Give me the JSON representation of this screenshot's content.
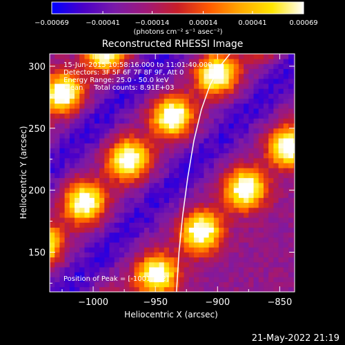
{
  "chart_data": {
    "type": "heatmap",
    "title": "Reconstructed RHESSI Image",
    "xlabel": "Heliocentric X (arcsec)",
    "ylabel": "Heliocentric Y (arcsec)",
    "xlim": [
      -1035,
      -838
    ],
    "ylim": [
      118,
      310
    ],
    "x_ticks": [
      -1000,
      -950,
      -900,
      -850
    ],
    "y_ticks": [
      150,
      200,
      250,
      300
    ],
    "x_tick_labels": [
      "−1000",
      "−950",
      "−900",
      "−850"
    ],
    "y_tick_labels": [
      "150",
      "200",
      "250",
      "300"
    ],
    "colorbar": {
      "range": [
        -0.00069,
        0.00069
      ],
      "ticks": [
        -0.00069,
        -0.00041,
        -0.00014,
        0.00014,
        0.00041,
        0.00069
      ],
      "tick_labels": [
        "−0.00069",
        "−0.00041",
        "−0.00014",
        "0.00014",
        "0.00041",
        "0.00069"
      ],
      "unit_label": "(photons cm⁻² s⁻¹ asec⁻²)",
      "colormap": [
        "#0000ff",
        "#4a00c8",
        "#7a1aa8",
        "#a01878",
        "#c81e28",
        "#ff5a00",
        "#ffaa00",
        "#ffe600",
        "#ffffff"
      ]
    },
    "annotations": [
      "15-Jun-2015 10:58:16.000 to 11:01:40.000",
      "Detectors: 3F 5F 6F 7F 8F 9F, Att 0",
      "Energy Range: 25.0 - 50.0 keV",
      "Clean     Total counts: 8.91E+03"
    ],
    "peak_label": "Position of Peak = [-1001,182]",
    "limb_curve": {
      "x": [
        -933,
        -931,
        -928,
        -924,
        -919,
        -913,
        -906,
        -898,
        -890
      ],
      "y": [
        118,
        150,
        180,
        210,
        240,
        265,
        285,
        300,
        310
      ]
    },
    "bands": [
      {
        "kind": "bright",
        "offset": -70
      },
      {
        "kind": "bright",
        "offset": 45
      },
      {
        "kind": "bright",
        "offset": 150
      },
      {
        "kind": "dark",
        "offset": -10
      },
      {
        "kind": "dark",
        "offset": 100
      }
    ]
  },
  "footer": {
    "timestamp": "21-May-2022 21:19"
  }
}
